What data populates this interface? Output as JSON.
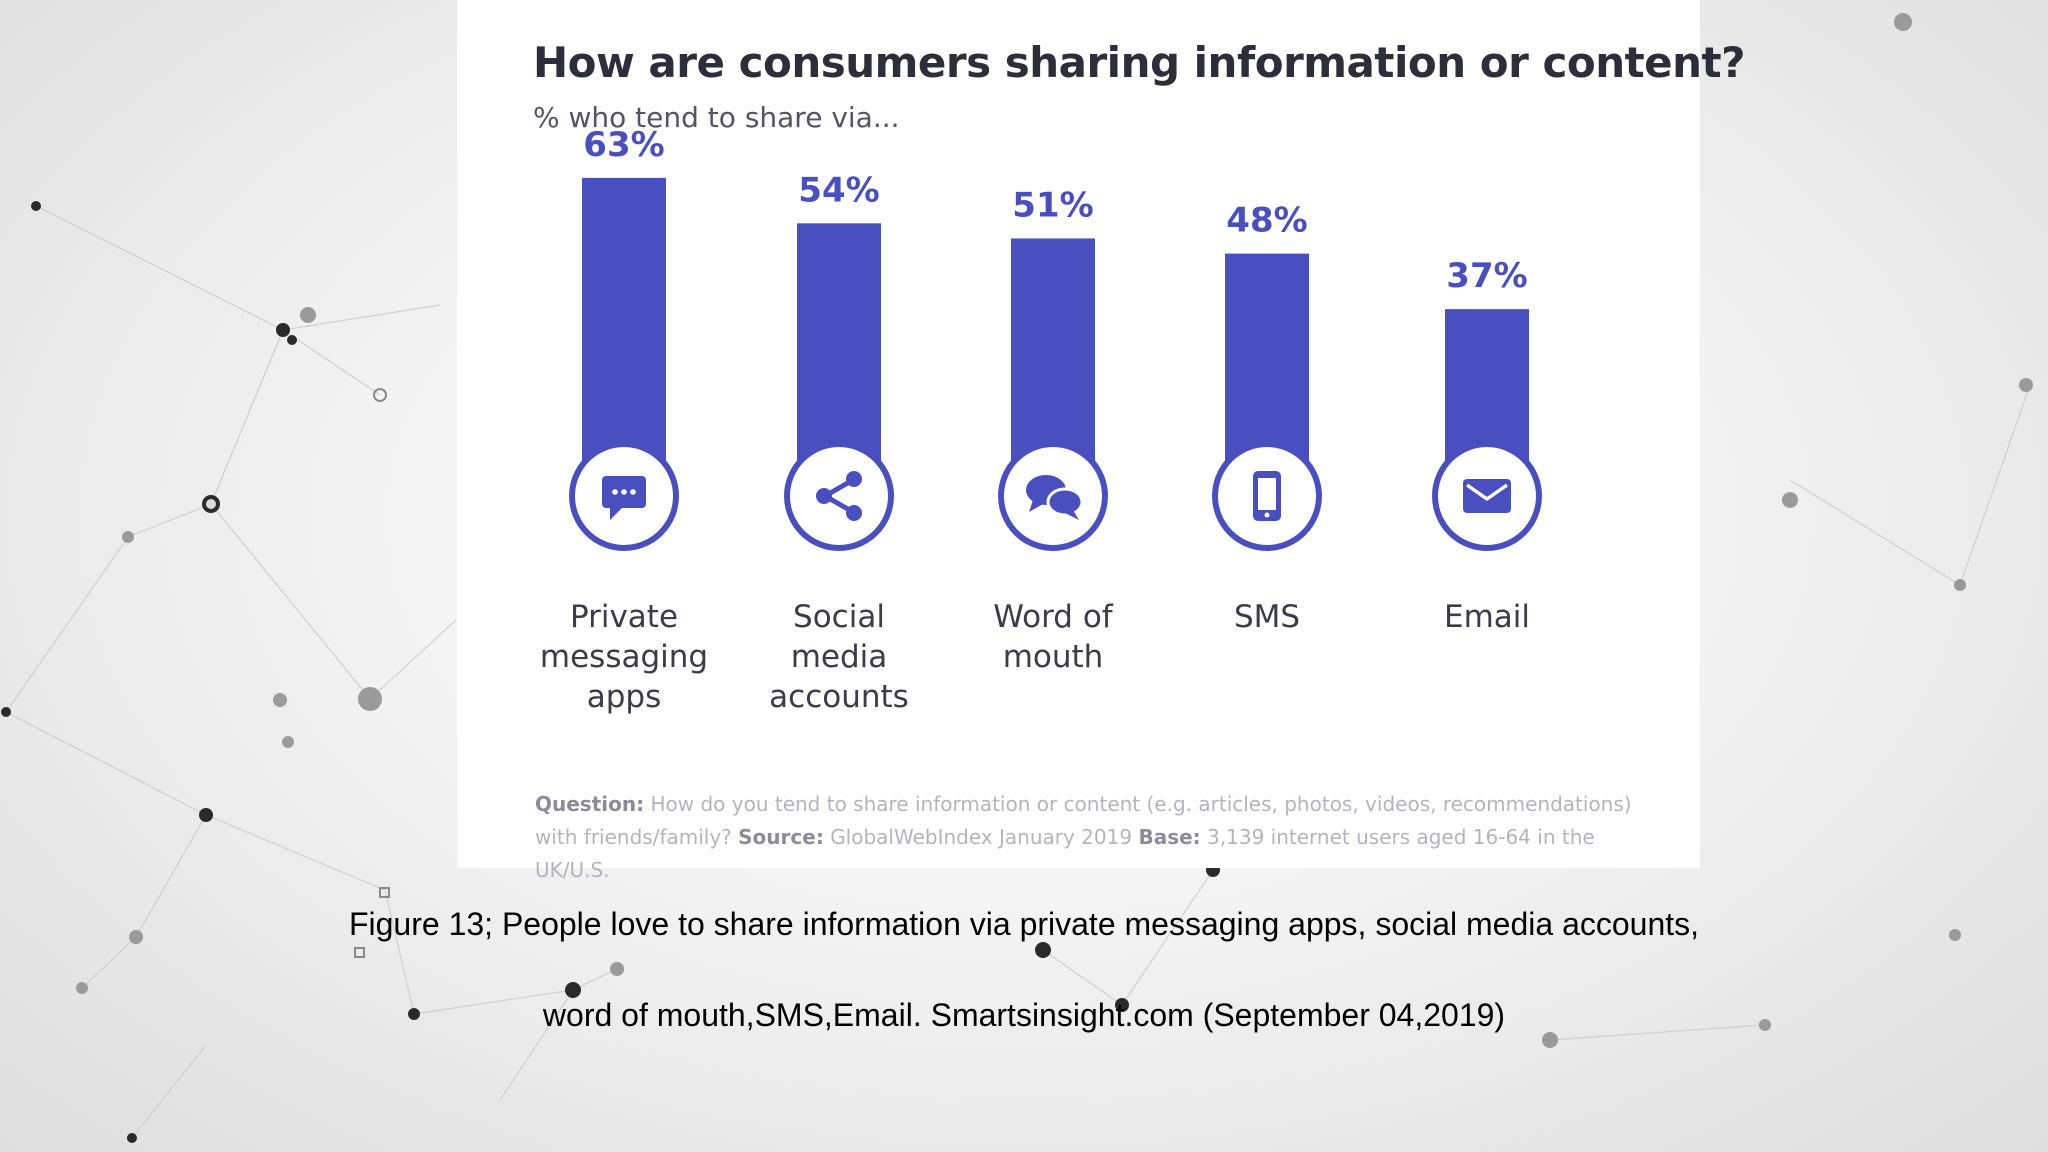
{
  "colors": {
    "bar": "#4a4fc0",
    "value_label": "#4a4fc0",
    "category_label": "#3c3c48"
  },
  "chart_data": {
    "type": "bar",
    "title": "How are consumers sharing information or content?",
    "subtitle": "% who tend to share via...",
    "unit": "%",
    "ylim": [
      0,
      63
    ],
    "grid": false,
    "categories": [
      {
        "label_lines": [
          "Private",
          "messaging",
          "apps"
        ],
        "value": 63,
        "value_label": "63%",
        "icon": "chat-bubble-icon"
      },
      {
        "label_lines": [
          "Social",
          "media",
          "accounts"
        ],
        "value": 54,
        "value_label": "54%",
        "icon": "share-icon"
      },
      {
        "label_lines": [
          "Word of",
          "mouth"
        ],
        "value": 51,
        "value_label": "51%",
        "icon": "conversation-bubbles-icon"
      },
      {
        "label_lines": [
          "SMS"
        ],
        "value": 48,
        "value_label": "48%",
        "icon": "mobile-phone-icon"
      },
      {
        "label_lines": [
          "Email"
        ],
        "value": 37,
        "value_label": "37%",
        "icon": "envelope-icon"
      }
    ],
    "footnote": {
      "question_label": "Question:",
      "question_text": "How do you tend to share information or content (e.g. articles, photos, videos, recommendations) with friends/family?",
      "source_label": "Source:",
      "source_text": "GlobalWebIndex January 2019",
      "base_label": "Base:",
      "base_text": "3,139 internet users aged 16-64 in the UK/U.S."
    }
  },
  "caption": {
    "line1": "Figure 13; People love to share information via private messaging apps, social media accounts,",
    "line2": "word of mouth,SMS,Email. Smartsinsight.com (September 04,2019)"
  }
}
